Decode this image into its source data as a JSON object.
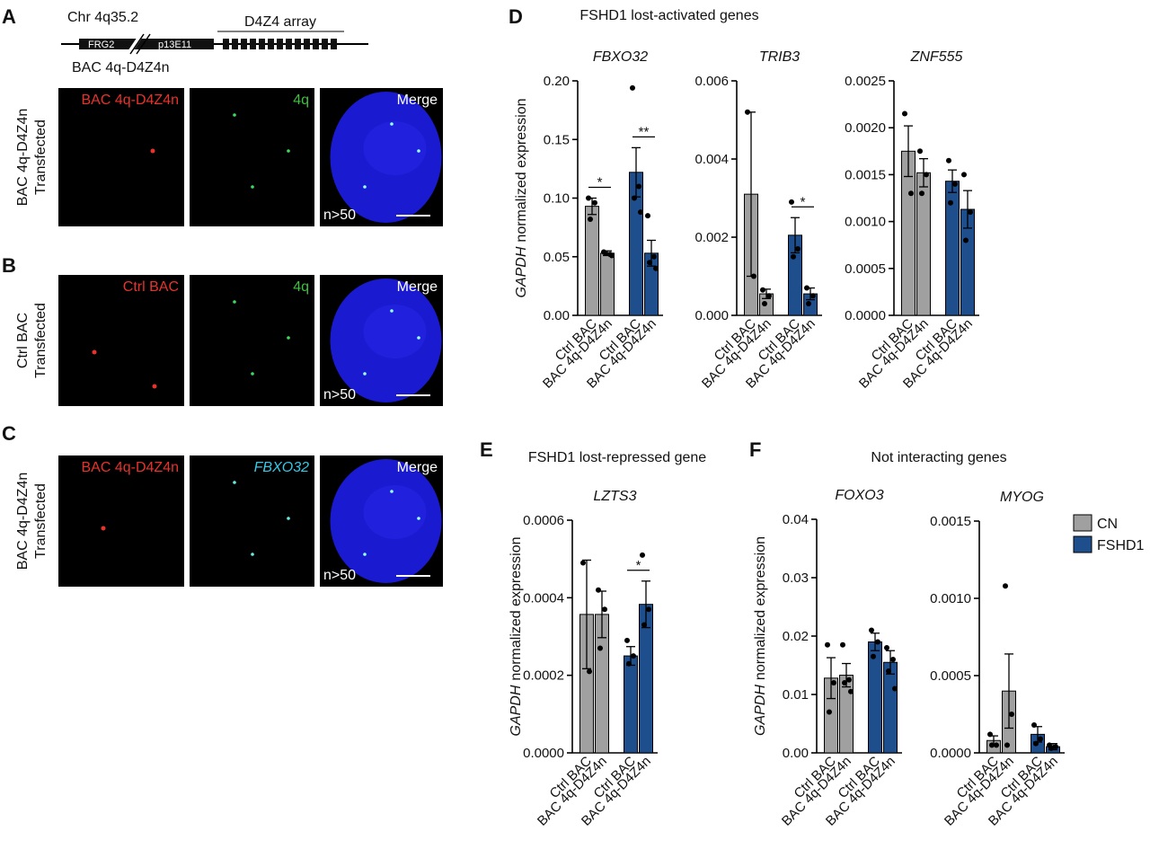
{
  "figure": {
    "panel_labels": [
      "A",
      "B",
      "C",
      "D",
      "E",
      "F"
    ],
    "diagram": {
      "chr": "Chr 4q35.2",
      "frg2": "FRG2",
      "p13": "p13E11",
      "array": "D4Z4 array",
      "bac": "BAC 4q-D4Z4n"
    },
    "rows": [
      {
        "side": [
          "BAC 4q-D4Z4n",
          "Transfected"
        ],
        "channels": [
          "BAC 4q-D4Z4n",
          "4q",
          "Merge"
        ],
        "count": "n>50"
      },
      {
        "side": [
          "Ctrl BAC",
          "Transfected"
        ],
        "channels": [
          "Ctrl BAC",
          "4q",
          "Merge"
        ],
        "count": "n>50"
      },
      {
        "side": [
          "BAC 4q-D4Z4n",
          "Transfected"
        ],
        "channels": [
          "BAC 4q-D4Z4n",
          "FBXO32",
          "Merge"
        ],
        "count": "n>50"
      }
    ],
    "group_titles": [
      "FSHD1 lost-activated genes",
      "FSHD1 lost-repressed gene",
      "Not interacting genes"
    ]
  },
  "chart_data": [
    {
      "type": "bar",
      "title": "FBXO32",
      "y_label": {
        "gene": "GAPDH",
        "text": "normalized expression"
      },
      "categories": [
        "Ctrl BAC",
        "BAC 4q-D4Z4n",
        "Ctrl BAC",
        "BAC 4q-D4Z4n"
      ],
      "series": [
        {
          "name": "CN",
          "color": "#a0a0a0",
          "values": [
            0.093,
            0.053,
            null,
            null
          ],
          "errors": [
            0.007,
            0.002,
            null,
            null
          ],
          "points": [
            [
              0.1,
              0.096,
              0.082
            ],
            [
              0.054,
              0.052,
              0.053,
              0.051
            ],
            null,
            null
          ]
        },
        {
          "name": "FSHD1",
          "color": "#1f4e8c",
          "values": [
            null,
            null,
            0.122,
            0.053
          ],
          "errors": [
            null,
            null,
            0.021,
            0.011
          ],
          "points": [
            null,
            null,
            [
              0.194,
              0.11,
              0.1,
              0.088
            ],
            [
              0.085,
              0.05,
              0.045,
              0.04
            ]
          ]
        }
      ],
      "significance": [
        "*",
        "**"
      ],
      "ylim": [
        0,
        0.2
      ],
      "yticks": [
        {
          "value": 0,
          "label": "0.00"
        },
        {
          "value": 0.05,
          "label": "0.05"
        },
        {
          "value": 0.1,
          "label": "0.10"
        },
        {
          "value": 0.15,
          "label": "0.15"
        },
        {
          "value": 0.2,
          "label": "0.20"
        }
      ]
    },
    {
      "type": "bar",
      "title": "TRIB3",
      "categories": [
        "Ctrl BAC",
        "BAC 4q-D4Z4n",
        "Ctrl BAC",
        "BAC 4q-D4Z4n"
      ],
      "series": [
        {
          "name": "CN",
          "color": "#a0a0a0",
          "values": [
            0.0031,
            0.00055,
            null,
            null
          ],
          "errors": [
            0.0021,
            0.00012,
            null,
            null
          ],
          "points": [
            [
              0.0052,
              0.001
            ],
            [
              0.00065,
              0.0005,
              0.0003
            ],
            null,
            null
          ]
        },
        {
          "name": "FSHD1",
          "color": "#1f4e8c",
          "values": [
            null,
            null,
            0.00205,
            0.00055
          ],
          "errors": [
            null,
            null,
            0.00045,
            0.00015
          ],
          "points": [
            null,
            null,
            [
              0.0029,
              0.0017,
              0.0015
            ],
            [
              0.0007,
              0.0005,
              0.0003
            ]
          ]
        }
      ],
      "significance": [
        null,
        "*"
      ],
      "ylim": [
        0,
        0.006
      ],
      "yticks": [
        {
          "value": 0,
          "label": "0.000"
        },
        {
          "value": 0.002,
          "label": "0.002"
        },
        {
          "value": 0.004,
          "label": "0.004"
        },
        {
          "value": 0.006,
          "label": "0.006"
        }
      ]
    },
    {
      "type": "bar",
      "title": "ZNF555",
      "categories": [
        "Ctrl BAC",
        "BAC 4q-D4Z4n",
        "Ctrl BAC",
        "BAC 4q-D4Z4n"
      ],
      "series": [
        {
          "name": "CN",
          "color": "#a0a0a0",
          "values": [
            0.00175,
            0.00152,
            null,
            null
          ],
          "errors": [
            0.00027,
            0.00015,
            null,
            null
          ],
          "points": [
            [
              0.00215,
              0.0013
            ],
            [
              0.00175,
              0.0015,
              0.0013
            ],
            null,
            null
          ]
        },
        {
          "name": "FSHD1",
          "color": "#1f4e8c",
          "values": [
            null,
            null,
            0.00143,
            0.00113
          ],
          "errors": [
            null,
            null,
            0.00012,
            0.0002
          ],
          "points": [
            null,
            null,
            [
              0.00165,
              0.0014,
              0.0012
            ],
            [
              0.0015,
              0.0011,
              0.0008
            ]
          ]
        }
      ],
      "ylim": [
        0,
        0.0025
      ],
      "yticks": [
        {
          "value": 0,
          "label": "0.0000"
        },
        {
          "value": 0.0005,
          "label": "0.0005"
        },
        {
          "value": 0.001,
          "label": "0.0010"
        },
        {
          "value": 0.0015,
          "label": "0.0015"
        },
        {
          "value": 0.002,
          "label": "0.0020"
        },
        {
          "value": 0.0025,
          "label": "0.0025"
        }
      ]
    },
    {
      "type": "bar",
      "title": "LZTS3",
      "y_label": {
        "gene": "GAPDH",
        "text": "normalized expression"
      },
      "categories": [
        "Ctrl BAC",
        "BAC 4q-D4Z4n",
        "Ctrl BAC",
        "BAC 4q-D4Z4n"
      ],
      "series": [
        {
          "name": "CN",
          "color": "#a0a0a0",
          "values": [
            0.000357,
            0.000357,
            null,
            null
          ],
          "errors": [
            0.00014,
            6e-05,
            null,
            null
          ],
          "points": [
            [
              0.00049,
              0.00021
            ],
            [
              0.00042,
              0.00037,
              0.00027
            ],
            null,
            null
          ]
        },
        {
          "name": "FSHD1",
          "color": "#1f4e8c",
          "values": [
            null,
            null,
            0.00025,
            0.000383
          ],
          "errors": [
            null,
            null,
            2.4e-05,
            6e-05
          ],
          "points": [
            null,
            null,
            [
              0.00029,
              0.00025,
              0.00023
            ],
            [
              0.00051,
              0.00037,
              0.00033
            ]
          ]
        }
      ],
      "significance": [
        null,
        "*"
      ],
      "ylim": [
        0,
        0.0006
      ],
      "yticks": [
        {
          "value": 0,
          "label": "0.0000"
        },
        {
          "value": 0.0002,
          "label": "0.0002"
        },
        {
          "value": 0.0004,
          "label": "0.0004"
        },
        {
          "value": 0.0006,
          "label": "0.0006"
        }
      ]
    },
    {
      "type": "bar",
      "title": "FOXO3",
      "y_label": {
        "gene": "GAPDH",
        "text": "normalized expression"
      },
      "categories": [
        "Ctrl BAC",
        "BAC 4q-D4Z4n",
        "Ctrl BAC",
        "BAC 4q-D4Z4n"
      ],
      "series": [
        {
          "name": "CN",
          "color": "#a0a0a0",
          "values": [
            0.0128,
            0.0133,
            null,
            null
          ],
          "errors": [
            0.0035,
            0.002,
            null,
            null
          ],
          "points": [
            [
              0.0185,
              0.012,
              0.007
            ],
            [
              0.0185,
              0.0125,
              0.012,
              0.0105
            ],
            null,
            null
          ]
        },
        {
          "name": "FSHD1",
          "color": "#1f4e8c",
          "values": [
            null,
            null,
            0.019,
            0.0155
          ],
          "errors": [
            null,
            null,
            0.0015,
            0.002
          ],
          "points": [
            null,
            null,
            [
              0.021,
              0.019,
              0.0165
            ],
            [
              0.018,
              0.016,
              0.014,
              0.011
            ]
          ]
        }
      ],
      "ylim": [
        0,
        0.04
      ],
      "yticks": [
        {
          "value": 0,
          "label": "0.00"
        },
        {
          "value": 0.01,
          "label": "0.01"
        },
        {
          "value": 0.02,
          "label": "0.02"
        },
        {
          "value": 0.03,
          "label": "0.03"
        },
        {
          "value": 0.04,
          "label": "0.04"
        }
      ]
    },
    {
      "type": "bar",
      "title": "MYOG",
      "legend": "right",
      "categories": [
        "Ctrl BAC",
        "BAC 4q-D4Z4n",
        "Ctrl BAC",
        "BAC 4q-D4Z4n"
      ],
      "series": [
        {
          "name": "CN",
          "color": "#a0a0a0",
          "values": [
            8e-05,
            0.0004,
            null,
            null
          ],
          "errors": [
            3e-05,
            0.00024,
            null,
            null
          ],
          "points": [
            [
              0.00012,
              5e-05,
              5e-05
            ],
            [
              0.00108,
              0.00025,
              5e-05
            ],
            null,
            null
          ]
        },
        {
          "name": "FSHD1",
          "color": "#1f4e8c",
          "values": [
            null,
            null,
            0.00012,
            4e-05
          ],
          "errors": [
            null,
            null,
            5e-05,
            2e-05
          ],
          "points": [
            null,
            null,
            [
              0.00018,
              9e-05,
              6e-05
            ],
            [
              5e-05,
              4e-05,
              3e-05
            ]
          ]
        }
      ],
      "ylim": [
        0,
        0.0015
      ],
      "yticks": [
        {
          "value": 0,
          "label": "0.0000"
        },
        {
          "value": 0.0005,
          "label": "0.0005"
        },
        {
          "value": 0.001,
          "label": "0.0010"
        },
        {
          "value": 0.0015,
          "label": "0.0015"
        }
      ]
    }
  ]
}
